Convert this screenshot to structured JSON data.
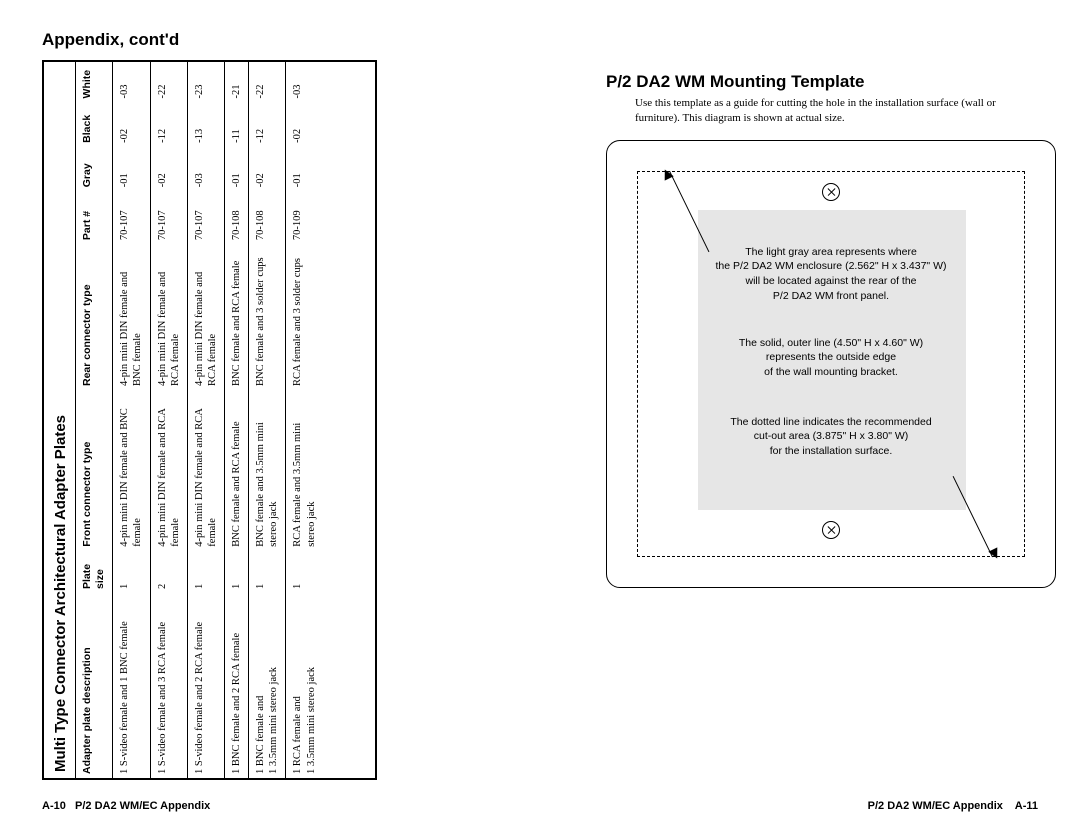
{
  "left": {
    "heading": "Appendix, cont'd",
    "table_title": "Multi Type Connector Architectural Adapter Plates",
    "columns": {
      "desc": "Adapter plate description",
      "plate": "Plate size",
      "front": "Front connector type",
      "rear": "Rear connector type",
      "part": "Part #",
      "gray": "Gray",
      "black": "Black",
      "white": "White"
    },
    "rows": [
      {
        "desc": "1 S-video female and 1 BNC female",
        "plate": "1",
        "front": "4-pin mini DIN female and BNC female",
        "rear": "4-pin mini DIN female and BNC female",
        "part": "70-107",
        "gray": "-01",
        "black": "-02",
        "white": "-03"
      },
      {
        "desc": "1 S-video female and 3 RCA female",
        "plate": "2",
        "front": "4-pin mini DIN female and RCA female",
        "rear": "4-pin mini DIN female and RCA female",
        "part": "70-107",
        "gray": "-02",
        "black": "-12",
        "white": "-22"
      },
      {
        "desc": "1 S-video female and 2 RCA female",
        "plate": "1",
        "front": "4-pin mini DIN female and RCA female",
        "rear": "4-pin mini DIN female and RCA female",
        "part": "70-107",
        "gray": "-03",
        "black": "-13",
        "white": "-23"
      },
      {
        "desc": "1 BNC female and 2 RCA female",
        "plate": "1",
        "front": "BNC female and RCA female",
        "rear": "BNC female and RCA female",
        "part": "70-108",
        "gray": "-01",
        "black": "-11",
        "white": "-21"
      },
      {
        "desc": "1 BNC female and\n1 3.5mm mini stereo jack",
        "plate": "1",
        "front": "BNC female and 3.5mm mini stereo jack",
        "rear": "BNC female and 3 solder cups",
        "part": "70-108",
        "gray": "-02",
        "black": "-12",
        "white": "-22"
      },
      {
        "desc": "1 RCA female and\n1 3.5mm mini stereo jack",
        "plate": "1",
        "front": "RCA female and 3.5mm mini stereo jack",
        "rear": "RCA female and 3 solder cups",
        "part": "70-109",
        "gray": "-01",
        "black": "-02",
        "white": "-03"
      }
    ],
    "footer_page": "A-10",
    "footer_title": "P/2 DA2 WM/EC Appendix"
  },
  "right": {
    "heading": "P/2 DA2 WM Mounting Template",
    "desc": "Use this template as a guide for cutting the hole in the installation surface (wall or furniture).  This diagram is shown at actual size.",
    "block_a": "The light gray area represents where\nthe P/2 DA2 WM enclosure (2.562\" H x 3.437\" W)\nwill be located against the rear of the\nP/2 DA2 WM front panel.",
    "block_b": "The solid, outer line  (4.50\" H x 4.60\" W)\nrepresents the outside edge\nof the wall mounting bracket.",
    "block_c": "The dotted line indicates the recommended\ncut-out area (3.875\" H x 3.80\" W)\nfor the installation surface.",
    "footer_title": "P/2 DA2 WM/EC Appendix",
    "footer_page": "A-11"
  },
  "style": {
    "gray_fill": "#e6e6e6",
    "font_sans": "Arial, Helvetica, sans-serif",
    "font_serif": "Times New Roman, Times, serif",
    "heading_fontsize_pt": 13,
    "body_fontsize_pt": 8,
    "table_border_color": "#000000"
  }
}
